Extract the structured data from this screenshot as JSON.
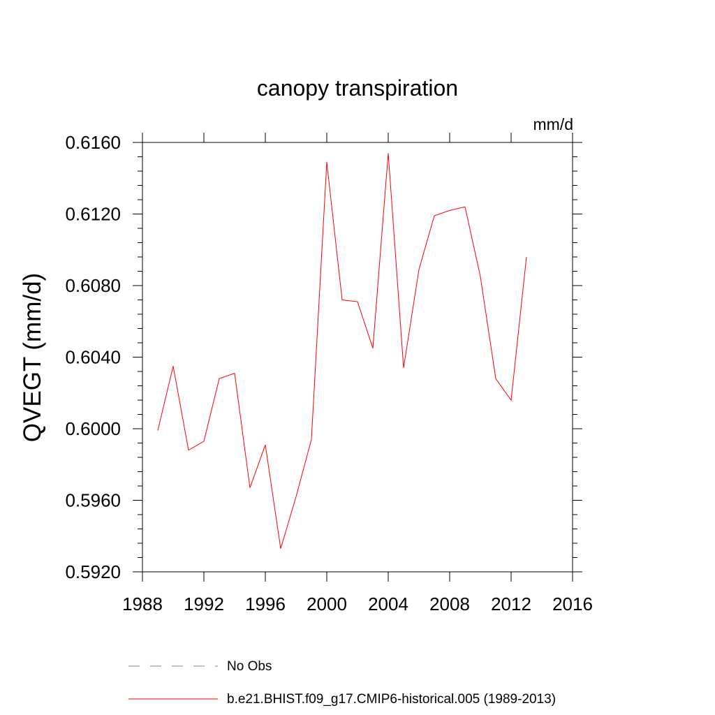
{
  "chart_data": {
    "type": "line",
    "title": "canopy transpiration",
    "units": "mm/d",
    "ylabel": "QVEGT  (mm/d)",
    "xlabel": "",
    "xlim": [
      1988,
      2016
    ],
    "ylim": [
      0.592,
      0.616
    ],
    "x_ticks": [
      "1988",
      "1992",
      "1996",
      "2000",
      "2004",
      "2008",
      "2012",
      "2016"
    ],
    "y_ticks": [
      "0.5920",
      "0.5960",
      "0.6000",
      "0.6040",
      "0.6080",
      "0.6120",
      "0.6160"
    ],
    "grid": false,
    "legend_position": "bottom",
    "series": [
      {
        "name": "b.e21.BHIST.f09_g17.CMIP6-historical.005 (1989-2013)",
        "color": "#ff0000",
        "style": "solid",
        "x": [
          1989,
          1990,
          1991,
          1992,
          1993,
          1994,
          1995,
          1996,
          1997,
          1998,
          1999,
          2000,
          2001,
          2002,
          2003,
          2004,
          2005,
          2006,
          2007,
          2008,
          2009,
          2010,
          2011,
          2012,
          2013
        ],
        "y": [
          0.5999,
          0.6035,
          0.5988,
          0.5993,
          0.6028,
          0.6031,
          0.5967,
          0.5991,
          0.5933,
          0.5962,
          0.5994,
          0.6149,
          0.6072,
          0.6071,
          0.6045,
          0.6154,
          0.6034,
          0.6089,
          0.6119,
          0.6122,
          0.6124,
          0.6085,
          0.6028,
          0.6016,
          0.6096
        ]
      }
    ],
    "legend": [
      {
        "label": "No Obs",
        "color": "#7f7fbf",
        "style": "dashed"
      },
      {
        "label": "b.e21.BHIST.f09_g17.CMIP6-historical.005 (1989-2013)",
        "color": "#ff0000",
        "style": "solid"
      }
    ]
  }
}
